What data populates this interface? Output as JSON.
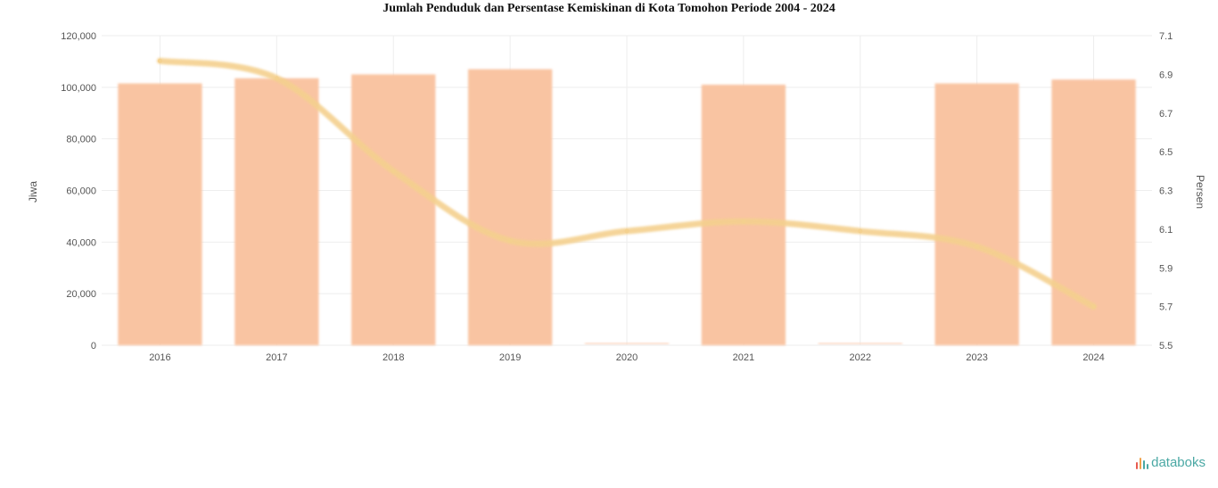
{
  "chart_data": {
    "type": "bar",
    "title": "Jumlah Penduduk dan Persentase Kemiskinan di Kota Tomohon Periode 2004 - 2024",
    "categories": [
      "2016",
      "2017",
      "2018",
      "2019",
      "2020",
      "2021",
      "2022",
      "2023",
      "2024"
    ],
    "series": [
      {
        "name": "Jiwa",
        "type": "bar",
        "axis": "left",
        "values": [
          101500,
          103500,
          105000,
          107000,
          null,
          101000,
          null,
          101500,
          103000
        ]
      },
      {
        "name": "Persen",
        "type": "line",
        "axis": "right",
        "values": [
          6.97,
          6.88,
          6.4,
          6.04,
          6.09,
          6.14,
          6.09,
          6.01,
          5.7
        ]
      }
    ],
    "ylabel": "Jiwa",
    "y2label": "Persen",
    "ylim": [
      0,
      120000
    ],
    "yticks": [
      0,
      20000,
      40000,
      60000,
      80000,
      100000,
      120000
    ],
    "ytick_labels": [
      "0",
      "20,000",
      "40,000",
      "60,000",
      "80,000",
      "100,000",
      "120,000"
    ],
    "y2lim": [
      5.5,
      7.1
    ],
    "y2ticks": [
      5.5,
      5.7,
      5.9,
      6.1,
      6.3,
      6.5,
      6.7,
      6.9,
      7.1
    ],
    "y2tick_labels": [
      "5.5",
      "5.7",
      "5.9",
      "6.1",
      "6.3",
      "6.5",
      "6.7",
      "6.9",
      "7.1"
    ],
    "grid": true,
    "colors": {
      "bar": "#f9c4a2",
      "line": "#f4d08e",
      "grid": "#eeeeee",
      "placeholder": "#fbd7c2"
    }
  },
  "brand": {
    "name": "databoks",
    "color": "#4aa8a4",
    "icon_colors": [
      "#e85a4f",
      "#f0a14a",
      "#4aa8a4",
      "#4aa8a4"
    ]
  }
}
